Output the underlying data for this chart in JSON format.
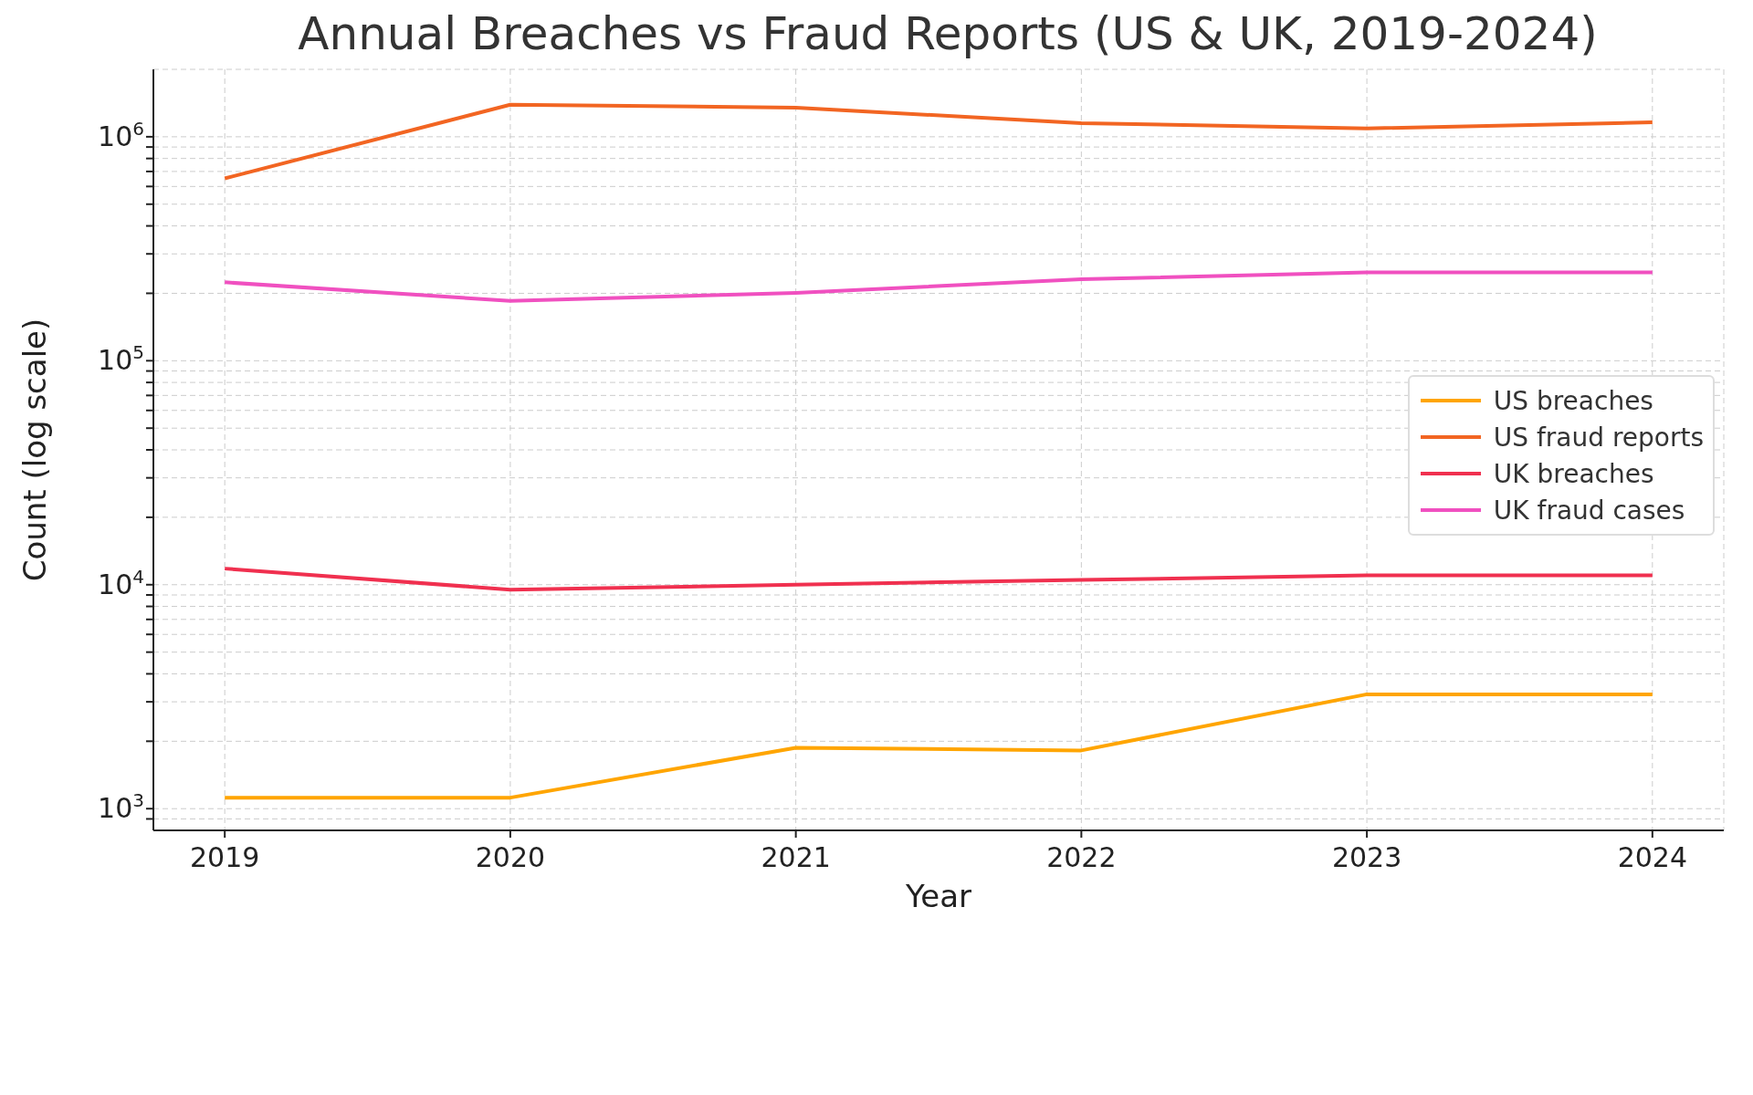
{
  "chart_data": {
    "type": "line",
    "title": "Annual Breaches vs Fraud Reports (US & UK, 2019-2024)",
    "xlabel": "Year",
    "ylabel": "Count (log scale)",
    "x": [
      2019,
      2020,
      2021,
      2022,
      2023,
      2024
    ],
    "series": [
      {
        "name": "US breaches",
        "color": "#ffa500",
        "values": [
          1120,
          1120,
          1870,
          1820,
          3240,
          3240
        ]
      },
      {
        "name": "US fraud reports",
        "color": "#f26522",
        "values": [
          652000,
          1390000,
          1350000,
          1150000,
          1090000,
          1160000
        ]
      },
      {
        "name": "UK breaches",
        "color": "#f0304f",
        "values": [
          11800,
          9500,
          10000,
          10500,
          11000,
          11000
        ]
      },
      {
        "name": "UK fraud cases",
        "color": "#f050c0",
        "values": [
          224000,
          185000,
          201000,
          231000,
          248000,
          248000
        ]
      }
    ],
    "log": "y",
    "xlim": [
      2018.75,
      2024.25
    ],
    "xticks": [
      2019,
      2020,
      2021,
      2022,
      2023,
      2024
    ],
    "ylim": [
      800,
      2000000
    ],
    "yticks": [
      {
        "value": 900,
        "label": null
      },
      {
        "value": 1000,
        "label": "10$^{3}$"
      },
      {
        "value": 2000,
        "label": null
      },
      {
        "value": 3000,
        "label": null
      },
      {
        "value": 4000,
        "label": null
      },
      {
        "value": 5000,
        "label": null
      },
      {
        "value": 6000,
        "label": null
      },
      {
        "value": 7000,
        "label": null
      },
      {
        "value": 8000,
        "label": null
      },
      {
        "value": 9000,
        "label": null
      },
      {
        "value": 10000,
        "label": "10$^{4}$"
      },
      {
        "value": 20000,
        "label": null
      },
      {
        "value": 30000,
        "label": null
      },
      {
        "value": 40000,
        "label": null
      },
      {
        "value": 50000,
        "label": null
      },
      {
        "value": 60000,
        "label": null
      },
      {
        "value": 70000,
        "label": null
      },
      {
        "value": 80000,
        "label": null
      },
      {
        "value": 90000,
        "label": null
      },
      {
        "value": 100000,
        "label": "10$^{5}$"
      },
      {
        "value": 200000,
        "label": null
      },
      {
        "value": 300000,
        "label": null
      },
      {
        "value": 400000,
        "label": null
      },
      {
        "value": 500000,
        "label": null
      },
      {
        "value": 600000,
        "label": null
      },
      {
        "value": 700000,
        "label": null
      },
      {
        "value": 800000,
        "label": null
      },
      {
        "value": 900000,
        "label": null
      },
      {
        "value": 1000000,
        "label": "10$^{6}$"
      }
    ],
    "grid": true,
    "legend": "right",
    "marker": "none",
    "line_style": "solid"
  }
}
